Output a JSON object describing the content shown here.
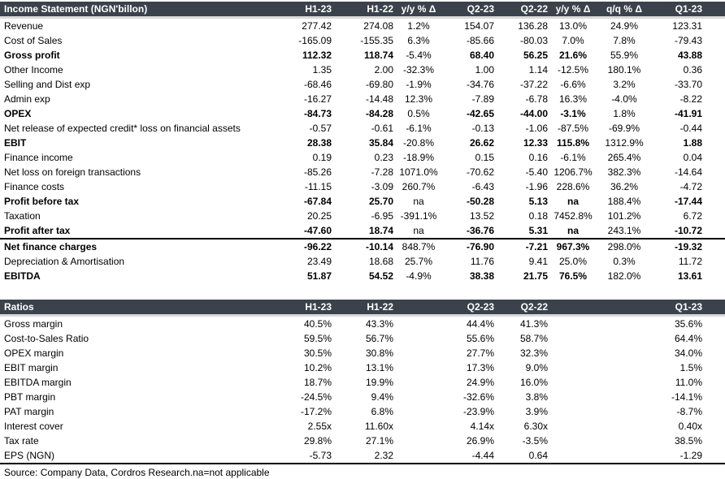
{
  "colors": {
    "header_bg": "#3B424C",
    "header_text": "#FFFFFF",
    "header_underline": "#D9D9D9",
    "divider_line": "#000000"
  },
  "income_statement": {
    "title": "Income Statement (NGN'billon)",
    "columns": [
      "H1-23",
      "H1-22",
      "y/y % Δ",
      "Q2-23",
      "Q2-22",
      "y/y % Δ",
      "q/q % Δ",
      "Q1-23"
    ],
    "rows": [
      {
        "label": "Revenue",
        "bold": false,
        "divider_below": false,
        "values": [
          "277.42",
          "274.08",
          "1.2%",
          "154.07",
          "136.28",
          "13.0%",
          "24.9%",
          "123.31"
        ]
      },
      {
        "label": "Cost of Sales",
        "bold": false,
        "divider_below": false,
        "values": [
          "-165.09",
          "-155.35",
          "6.3%",
          "-85.66",
          "-80.03",
          "7.0%",
          "7.8%",
          "-79.43"
        ]
      },
      {
        "label": "Gross profit",
        "bold": true,
        "divider_below": false,
        "values": [
          "112.32",
          "118.74",
          "-5.4%",
          "68.40",
          "56.25",
          "21.6%",
          "55.9%",
          "43.88"
        ]
      },
      {
        "label": "Other Income",
        "bold": false,
        "divider_below": false,
        "values": [
          "1.35",
          "2.00",
          "-32.3%",
          "1.00",
          "1.14",
          "-12.5%",
          "180.1%",
          "0.36"
        ]
      },
      {
        "label": "Selling and Dist exp",
        "bold": false,
        "divider_below": false,
        "values": [
          "-68.46",
          "-69.80",
          "-1.9%",
          "-34.76",
          "-37.22",
          "-6.6%",
          "3.2%",
          "-33.70"
        ]
      },
      {
        "label": "Admin exp",
        "bold": false,
        "divider_below": false,
        "values": [
          "-16.27",
          "-14.48",
          "12.3%",
          "-7.89",
          "-6.78",
          "16.3%",
          "-4.0%",
          "-8.22"
        ]
      },
      {
        "label": "OPEX",
        "bold": true,
        "divider_below": false,
        "values": [
          "-84.73",
          "-84.28",
          "0.5%",
          "-42.65",
          "-44.00",
          "-3.1%",
          "1.8%",
          "-41.91"
        ]
      },
      {
        "label": "Net release of expected credit* loss on financial assets",
        "bold": false,
        "divider_below": false,
        "values": [
          "-0.57",
          "-0.61",
          "-6.1%",
          "-0.13",
          "-1.06",
          "-87.5%",
          "-69.9%",
          "-0.44"
        ]
      },
      {
        "label": "EBIT",
        "bold": true,
        "divider_below": false,
        "values": [
          "28.38",
          "35.84",
          "-20.8%",
          "26.62",
          "12.33",
          "115.8%",
          "1312.9%",
          "1.88"
        ]
      },
      {
        "label": "Finance income",
        "bold": false,
        "divider_below": false,
        "values": [
          "0.19",
          "0.23",
          "-18.9%",
          "0.15",
          "0.16",
          "-6.1%",
          "265.4%",
          "0.04"
        ]
      },
      {
        "label": "Net loss on foreign transactions",
        "bold": false,
        "divider_below": false,
        "values": [
          "-85.26",
          "-7.28",
          "1071.0%",
          "-70.62",
          "-5.40",
          "1206.7%",
          "382.3%",
          "-14.64"
        ]
      },
      {
        "label": "Finance costs",
        "bold": false,
        "divider_below": false,
        "values": [
          "-11.15",
          "-3.09",
          "260.7%",
          "-6.43",
          "-1.96",
          "228.6%",
          "36.2%",
          "-4.72"
        ]
      },
      {
        "label": "Profit before tax",
        "bold": true,
        "divider_below": false,
        "values": [
          "-67.84",
          "25.70",
          "na",
          "-50.28",
          "5.13",
          "na",
          "188.4%",
          "-17.44"
        ]
      },
      {
        "label": "Taxation",
        "bold": false,
        "divider_below": false,
        "values": [
          "20.25",
          "-6.95",
          "-391.1%",
          "13.52",
          "0.18",
          "7452.8%",
          "101.2%",
          "6.72"
        ]
      },
      {
        "label": "Profit after tax",
        "bold": true,
        "divider_below": true,
        "values": [
          "-47.60",
          "18.74",
          "na",
          "-36.76",
          "5.31",
          "na",
          "243.1%",
          "-10.72"
        ]
      },
      {
        "label": "Net finance charges",
        "bold": true,
        "divider_below": false,
        "values": [
          "-96.22",
          "-10.14",
          "848.7%",
          "-76.90",
          "-7.21",
          "967.3%",
          "298.0%",
          "-19.32"
        ]
      },
      {
        "label": "Depreciation & Amortisation",
        "bold": false,
        "divider_below": false,
        "values": [
          "23.49",
          "18.68",
          "25.7%",
          "11.76",
          "9.41",
          "25.0%",
          "0.3%",
          "11.72"
        ]
      },
      {
        "label": "EBITDA",
        "bold": true,
        "divider_below": false,
        "values": [
          "51.87",
          "54.52",
          "-4.9%",
          "38.38",
          "21.75",
          "76.5%",
          "182.0%",
          "13.61"
        ]
      }
    ]
  },
  "ratios": {
    "title": "Ratios",
    "columns": [
      "H1-23",
      "H1-22",
      "",
      "Q2-23",
      "Q2-22",
      "",
      "",
      "Q1-23"
    ],
    "rows": [
      {
        "label": "Gross margin",
        "bold": false,
        "divider_below": false,
        "values": [
          "40.5%",
          "43.3%",
          "",
          "44.4%",
          "41.3%",
          "",
          "",
          "35.6%"
        ]
      },
      {
        "label": "Cost-to-Sales Ratio",
        "bold": false,
        "divider_below": false,
        "values": [
          "59.5%",
          "56.7%",
          "",
          "55.6%",
          "58.7%",
          "",
          "",
          "64.4%"
        ]
      },
      {
        "label": "OPEX margin",
        "bold": false,
        "divider_below": false,
        "values": [
          "30.5%",
          "30.8%",
          "",
          "27.7%",
          "32.3%",
          "",
          "",
          "34.0%"
        ]
      },
      {
        "label": "EBIT margin",
        "bold": false,
        "divider_below": false,
        "values": [
          "10.2%",
          "13.1%",
          "",
          "17.3%",
          "9.0%",
          "",
          "",
          "1.5%"
        ]
      },
      {
        "label": "EBITDA margin",
        "bold": false,
        "divider_below": false,
        "values": [
          "18.7%",
          "19.9%",
          "",
          "24.9%",
          "16.0%",
          "",
          "",
          "11.0%"
        ]
      },
      {
        "label": "PBT margin",
        "bold": false,
        "divider_below": false,
        "values": [
          "-24.5%",
          "9.4%",
          "",
          "-32.6%",
          "3.8%",
          "",
          "",
          "-14.1%"
        ]
      },
      {
        "label": "PAT margin",
        "bold": false,
        "divider_below": false,
        "values": [
          "-17.2%",
          "6.8%",
          "",
          "-23.9%",
          "3.9%",
          "",
          "",
          "-8.7%"
        ]
      },
      {
        "label": "Interest cover",
        "bold": false,
        "divider_below": false,
        "values": [
          "2.55x",
          "11.60x",
          "",
          "4.14x",
          "6.30x",
          "",
          "",
          "0.40x"
        ]
      },
      {
        "label": "Tax rate",
        "bold": false,
        "divider_below": false,
        "values": [
          "29.8%",
          "27.1%",
          "",
          "26.9%",
          "-3.5%",
          "",
          "",
          "38.5%"
        ]
      },
      {
        "label": "EPS (NGN)",
        "bold": false,
        "divider_below": true,
        "values": [
          "-5.73",
          "2.32",
          "",
          "-4.44",
          "0.64",
          "",
          "",
          "-1.29"
        ]
      }
    ]
  },
  "source_note": "Source: Company Data, Cordros Research.na=not applicable"
}
